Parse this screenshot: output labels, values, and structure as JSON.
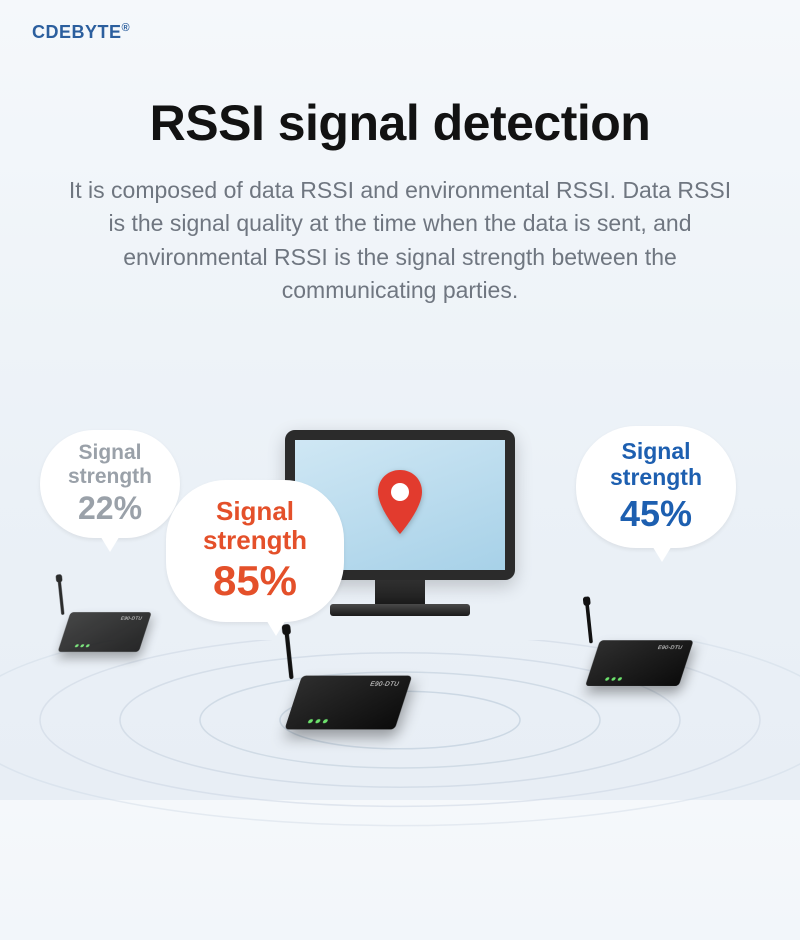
{
  "brand": {
    "name": "CDEBYTE",
    "reg": "®"
  },
  "heading": "RSSI signal detection",
  "description": "It is composed of data RSSI and environmental RSSI. Data RSSI is the signal quality at the time when the data is sent, and environmental RSSI is the signal strength between the communicating parties.",
  "colors": {
    "brand": "#2b5f9e",
    "heading": "#121212",
    "desc": "#6f7680",
    "bubble_gray": "#9aa1a9",
    "bubble_orange": "#e4502a",
    "bubble_blue": "#1d5fb0",
    "pin_fill": "#e23b2e",
    "wave_stroke": "#c7d3e0"
  },
  "bubbles": {
    "b1": {
      "label_l1": "Signal",
      "label_l2": "strength",
      "pct": "22%",
      "color": "#9aa1a9"
    },
    "b2": {
      "label_l1": "Signal",
      "label_l2": "strength",
      "pct": "85%",
      "color": "#e4502a"
    },
    "b3": {
      "label_l1": "Signal",
      "label_l2": "strength",
      "pct": "45%",
      "color": "#1d5fb0"
    }
  },
  "device_label": "E90-DTU",
  "waves": {
    "count": 5,
    "rx_start": 120,
    "rx_step": 80,
    "ry_ratio": 0.24
  }
}
